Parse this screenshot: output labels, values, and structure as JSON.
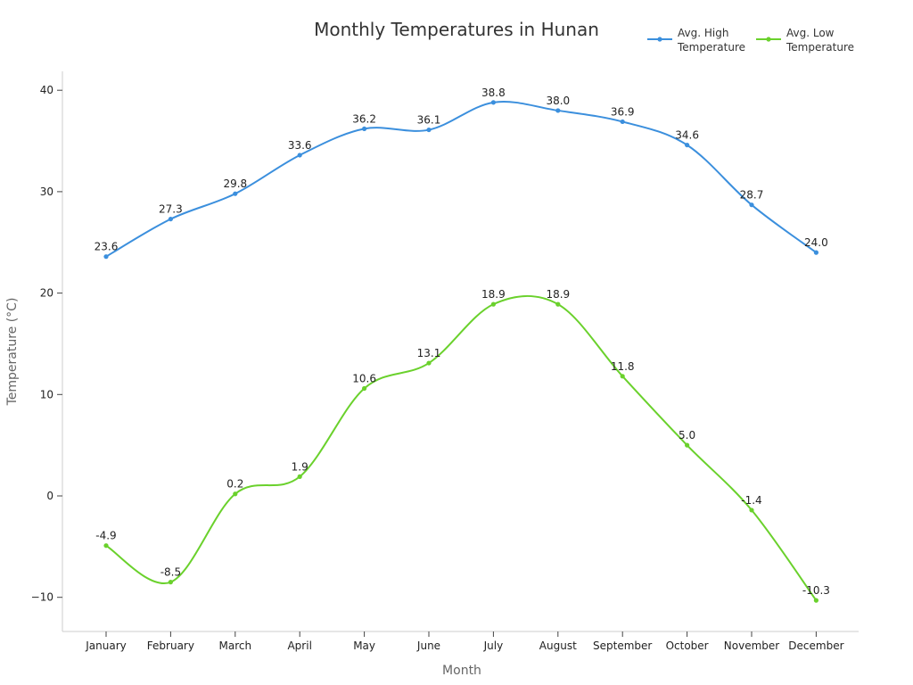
{
  "chart_data": {
    "type": "line",
    "title": "Monthly Temperatures in Hunan",
    "xlabel": "Month",
    "ylabel": "Temperature (°C)",
    "categories": [
      "January",
      "February",
      "March",
      "April",
      "May",
      "June",
      "July",
      "August",
      "September",
      "October",
      "November",
      "December"
    ],
    "ylim": [
      -13.5,
      42
    ],
    "yticks": [
      -10,
      0,
      10,
      20,
      30,
      40
    ],
    "ytick_labels": [
      "−10",
      "0",
      "10",
      "20",
      "30",
      "40"
    ],
    "grid": false,
    "legend": "top-right",
    "smooth": true,
    "series": [
      {
        "name": "Avg. High Temperature",
        "legend_lines": [
          "Avg. High",
          "Temperature"
        ],
        "color": "#3b8fdd",
        "values": [
          23.6,
          27.3,
          29.8,
          33.6,
          36.2,
          36.1,
          38.8,
          38.0,
          36.9,
          34.6,
          28.7,
          24.0
        ],
        "labels": [
          "23.6",
          "27.3",
          "29.8",
          "33.6",
          "36.2",
          "36.1",
          "38.8",
          "38.0",
          "36.9",
          "34.6",
          "28.7",
          "24.0"
        ]
      },
      {
        "name": "Avg. Low Temperature",
        "legend_lines": [
          "Avg. Low",
          "Temperature"
        ],
        "color": "#6ad12c",
        "values": [
          -4.9,
          -8.5,
          0.2,
          1.9,
          10.6,
          13.1,
          18.9,
          18.9,
          11.8,
          5.0,
          -1.4,
          -10.3
        ],
        "labels": [
          "-4.9",
          "-8.5",
          "0.2",
          "1.9",
          "10.6",
          "13.1",
          "18.9",
          "18.9",
          "11.8",
          "5.0",
          "-1.4",
          "-10.3"
        ]
      }
    ]
  }
}
